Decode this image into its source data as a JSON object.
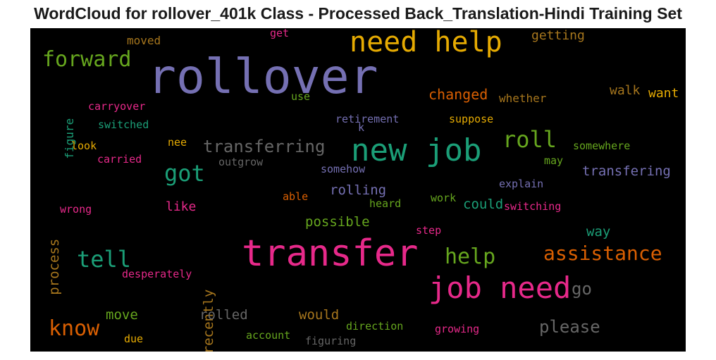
{
  "chart_data": {
    "type": "wordcloud",
    "title": "WordCloud for rollover_401k Class - Processed Back_Translation-Hindi Training Set",
    "words": [
      {
        "text": "rollover",
        "color": "#7570b3"
      },
      {
        "text": "transfer",
        "color": "#e7298a"
      },
      {
        "text": "need help",
        "color": "#e6ab02"
      },
      {
        "text": "new job",
        "color": "#1b9e77"
      },
      {
        "text": "job need",
        "color": "#e7298a"
      },
      {
        "text": "transferring",
        "color": "#666666"
      },
      {
        "text": "roll",
        "color": "#66a61e"
      },
      {
        "text": "got",
        "color": "#1b9e77"
      },
      {
        "text": "forward",
        "color": "#66a61e"
      },
      {
        "text": "tell",
        "color": "#1b9e77"
      },
      {
        "text": "know",
        "color": "#d95f02"
      },
      {
        "text": "assistance",
        "color": "#d95f02"
      },
      {
        "text": "help",
        "color": "#66a61e"
      },
      {
        "text": "please",
        "color": "#666666"
      },
      {
        "text": "go",
        "color": "#666666"
      },
      {
        "text": "getting",
        "color": "#a6761d"
      },
      {
        "text": "changed",
        "color": "#d95f02"
      },
      {
        "text": "walk",
        "color": "#a6761d"
      },
      {
        "text": "want",
        "color": "#e6ab02"
      },
      {
        "text": "transfering",
        "color": "#7570b3"
      },
      {
        "text": "rolling",
        "color": "#7570b3"
      },
      {
        "text": "could",
        "color": "#1b9e77"
      },
      {
        "text": "way",
        "color": "#1b9e77"
      },
      {
        "text": "like",
        "color": "#e7298a"
      },
      {
        "text": "possible",
        "color": "#66a61e"
      },
      {
        "text": "recently",
        "color": "#a6761d"
      },
      {
        "text": "process",
        "color": "#a6761d"
      },
      {
        "text": "rolled",
        "color": "#666666"
      },
      {
        "text": "would",
        "color": "#a6761d"
      },
      {
        "text": "move",
        "color": "#66a61e"
      },
      {
        "text": "figure",
        "color": "#1b9e77"
      },
      {
        "text": "moved",
        "color": "#a6761d"
      },
      {
        "text": "get",
        "color": "#e7298a"
      },
      {
        "text": "use",
        "color": "#66a61e"
      },
      {
        "text": "whether",
        "color": "#a6761d"
      },
      {
        "text": "carryover",
        "color": "#e7298a"
      },
      {
        "text": "switched",
        "color": "#1b9e77"
      },
      {
        "text": "retirement",
        "color": "#7570b3"
      },
      {
        "text": "k",
        "color": "#7570b3"
      },
      {
        "text": "suppose",
        "color": "#e6ab02"
      },
      {
        "text": "look",
        "color": "#e6ab02"
      },
      {
        "text": "nee",
        "color": "#e6ab02"
      },
      {
        "text": "somewhere",
        "color": "#66a61e"
      },
      {
        "text": "carried",
        "color": "#e7298a"
      },
      {
        "text": "outgrow",
        "color": "#666666"
      },
      {
        "text": "may",
        "color": "#66a61e"
      },
      {
        "text": "somehow",
        "color": "#7570b3"
      },
      {
        "text": "explain",
        "color": "#7570b3"
      },
      {
        "text": "able",
        "color": "#d95f02"
      },
      {
        "text": "work",
        "color": "#66a61e"
      },
      {
        "text": "heard",
        "color": "#66a61e"
      },
      {
        "text": "switching",
        "color": "#e7298a"
      },
      {
        "text": "wrong",
        "color": "#e7298a"
      },
      {
        "text": "step",
        "color": "#e7298a"
      },
      {
        "text": "desperately",
        "color": "#e7298a"
      },
      {
        "text": "direction",
        "color": "#66a61e"
      },
      {
        "text": "growing",
        "color": "#e7298a"
      },
      {
        "text": "account",
        "color": "#66a61e"
      },
      {
        "text": "figuring",
        "color": "#666666"
      },
      {
        "text": "due",
        "color": "#e6ab02"
      }
    ]
  }
}
